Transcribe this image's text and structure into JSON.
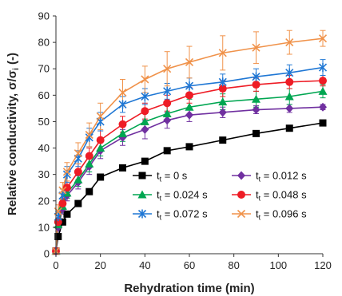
{
  "chart_data": {
    "type": "line",
    "xlabel": "Rehydration time (min)",
    "ylabel": "Relative conductivity, σ/σi (-)",
    "ylabel_parts": {
      "main": "Relative conductivity, σ/σ",
      "sub": "i",
      "tail": " (-)"
    },
    "xlim": [
      0,
      120
    ],
    "ylim": [
      0,
      90
    ],
    "xticks": [
      "0",
      "20",
      "40",
      "60",
      "80",
      "100",
      "120"
    ],
    "yticks": [
      "0",
      "10",
      "20",
      "30",
      "40",
      "50",
      "60",
      "70",
      "80",
      "90"
    ],
    "grid": false,
    "legend_position": "lower-right",
    "series": [
      {
        "name": "tt = 0 s",
        "legend_prefix": "t",
        "legend_sub": "t",
        "legend_value": " = 0 s",
        "color": "#000000",
        "marker": "square",
        "x": [
          0,
          1,
          3,
          5,
          10,
          15,
          20,
          30,
          40,
          50,
          60,
          75,
          90,
          105,
          120
        ],
        "y": [
          1,
          6.5,
          12,
          15,
          19,
          23.5,
          29,
          32.5,
          35,
          39,
          40.5,
          43,
          45.5,
          47.5,
          49.5
        ],
        "err": [
          0,
          0,
          0,
          0,
          0,
          0,
          0,
          0,
          0,
          0,
          0,
          0,
          0,
          0,
          0
        ]
      },
      {
        "name": "tt = 0.012 s",
        "legend_prefix": "t",
        "legend_sub": "t",
        "legend_value": " = 0.012 s",
        "color": "#7030a0",
        "marker": "diamond",
        "x": [
          0,
          1,
          3,
          5,
          10,
          15,
          20,
          30,
          40,
          50,
          60,
          75,
          90,
          105,
          120
        ],
        "y": [
          1,
          10,
          17,
          22,
          27,
          33,
          39,
          44,
          47,
          50.5,
          52.5,
          53.5,
          54.5,
          55,
          55.5
        ],
        "err": [
          0,
          1.5,
          2,
          2,
          2.5,
          3,
          3,
          3,
          3.5,
          3,
          2.5,
          2,
          1.5,
          1.5,
          1
        ]
      },
      {
        "name": "tt = 0.024 s",
        "legend_prefix": "t",
        "legend_sub": "t",
        "legend_value": " = 0.024 s",
        "color": "#00a651",
        "marker": "triangle",
        "x": [
          0,
          1,
          3,
          5,
          10,
          15,
          20,
          30,
          40,
          50,
          60,
          75,
          90,
          105,
          120
        ],
        "y": [
          1,
          11,
          18,
          23,
          28,
          34,
          40,
          45.5,
          50,
          53,
          55.5,
          57.5,
          58.5,
          59.5,
          61.5
        ],
        "err": [
          0,
          1.5,
          2,
          2,
          2.5,
          3,
          3,
          3,
          3,
          3,
          3,
          3,
          3,
          3,
          2.5
        ]
      },
      {
        "name": "tt = 0.048 s",
        "legend_prefix": "t",
        "legend_sub": "t",
        "legend_value": " = 0.048 s",
        "color": "#ee1c25",
        "marker": "circle",
        "x": [
          0,
          1,
          3,
          5,
          10,
          15,
          20,
          30,
          40,
          50,
          60,
          75,
          90,
          105,
          120
        ],
        "y": [
          1,
          12,
          19,
          25,
          31,
          37,
          43,
          49,
          54,
          57,
          60,
          62.5,
          64,
          65,
          65.5
        ],
        "err": [
          0,
          1.5,
          2,
          2.5,
          3,
          3,
          3.5,
          3,
          3,
          3,
          3,
          3,
          2.5,
          2.5,
          2
        ]
      },
      {
        "name": "tt = 0.072 s",
        "legend_prefix": "t",
        "legend_sub": "t",
        "legend_value": " = 0.072 s",
        "color": "#1f77d4",
        "marker": "star",
        "x": [
          0,
          1,
          3,
          5,
          10,
          15,
          20,
          30,
          40,
          50,
          60,
          75,
          90,
          105,
          120
        ],
        "y": [
          1,
          14,
          22,
          30,
          36,
          44,
          50,
          56.5,
          59.5,
          61.5,
          63.5,
          65,
          67,
          68.5,
          70.5
        ],
        "err": [
          0,
          2,
          2.5,
          3,
          3,
          3.5,
          3.5,
          3,
          3,
          3,
          3,
          3,
          3,
          3,
          3
        ]
      },
      {
        "name": "tt = 0.096 s",
        "legend_prefix": "t",
        "legend_sub": "t",
        "legend_value": " = 0.096 s",
        "color": "#f0924a",
        "marker": "x",
        "x": [
          0,
          1,
          3,
          5,
          10,
          15,
          20,
          30,
          40,
          50,
          60,
          75,
          90,
          105,
          120
        ],
        "y": [
          1,
          16,
          24,
          31,
          38,
          45,
          52,
          61,
          66,
          70,
          72.5,
          76,
          78,
          80,
          81.5
        ],
        "err": [
          0,
          2.5,
          3,
          3.5,
          4,
          4.5,
          5,
          5,
          5,
          6.5,
          6,
          6.5,
          6,
          4.5,
          3
        ]
      }
    ]
  }
}
